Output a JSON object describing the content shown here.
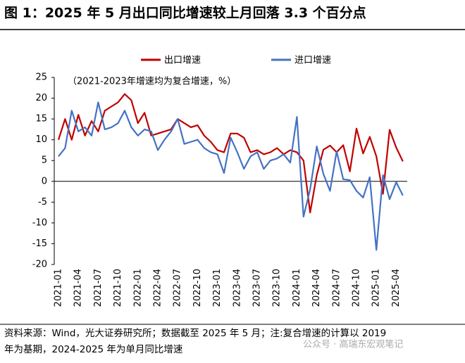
{
  "chart_data": {
    "type": "line",
    "title": "图 1：2025 年 5 月出口同比增速较上月回落 3.3 个百分点",
    "annotation": "（2021-2023年增速均为复合增速，%）",
    "categories": [
      "2021-01",
      null,
      null,
      "2021-04",
      null,
      null,
      "2021-07",
      null,
      null,
      "2021-10",
      null,
      null,
      "2022-01",
      null,
      null,
      "2022-04",
      null,
      null,
      "2022-07",
      null,
      null,
      "2022-10",
      null,
      null,
      "2023-01",
      null,
      null,
      "2023-04",
      null,
      null,
      "2023-07",
      null,
      null,
      "2023-10",
      null,
      null,
      "2024-01",
      null,
      null,
      "2024-04",
      null,
      null,
      "2024-07",
      null,
      null,
      "2024-10",
      null,
      null,
      "2025-01",
      null,
      null,
      "2025-04",
      null
    ],
    "series": [
      {
        "name": "出口增速",
        "color": "#c00000",
        "values": [
          10,
          15,
          10,
          16,
          11,
          14.5,
          12,
          17,
          18,
          19,
          21,
          19.5,
          14,
          16.5,
          11,
          11.5,
          12,
          12.5,
          15,
          14,
          13,
          13.5,
          11,
          9.5,
          7.5,
          7,
          11.5,
          11.5,
          10.5,
          7,
          7.5,
          6.5,
          7,
          8,
          6.5,
          7.5,
          7,
          5,
          -7.5,
          1.5,
          7.6,
          8.6,
          7,
          8.7,
          2.4,
          12.7,
          6.7,
          10.7,
          6,
          -3,
          12.4,
          8.1,
          4.8
        ]
      },
      {
        "name": "进口增速",
        "color": "#4472c4",
        "values": [
          6,
          8,
          17,
          12,
          13,
          11,
          19,
          12.5,
          13,
          14,
          17,
          13,
          11,
          12.5,
          12,
          7.5,
          10,
          12,
          15,
          9,
          9.5,
          10,
          8,
          7,
          6.5,
          2,
          10.5,
          7,
          3,
          6,
          7,
          3,
          5,
          5.5,
          6.5,
          4.5,
          15.5,
          -8.5,
          -1.9,
          8.4,
          1.8,
          -2.3,
          7.2,
          0.5,
          0.3,
          -2.3,
          -3.9,
          1,
          -16.5,
          1.5,
          -4.3,
          -0.2,
          -3.4
        ]
      }
    ],
    "ylim": [
      -20,
      25
    ],
    "yticks": [
      -20,
      -15,
      -10,
      -5,
      0,
      5,
      10,
      15,
      20,
      25
    ],
    "footer": [
      "资料来源：Wind，光大证券研究所；数据截至 2025 年 5 月；注:复合增速的计算以 2019",
      "年为基期，2024-2025 年为单月同比增速"
    ],
    "watermark": "公众号 · 高瑞东宏观笔记"
  }
}
